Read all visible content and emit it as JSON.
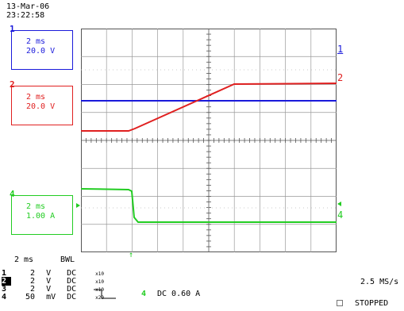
{
  "header": {
    "date": "13-Mar-06",
    "time": "23:22:58"
  },
  "channels": [
    {
      "number": "1",
      "timebase": "2 ms",
      "scale": "20.0 V",
      "color": "#1a1adb"
    },
    {
      "number": "2",
      "timebase": "2 ms",
      "scale": "20.0 V",
      "color": "#e02020"
    },
    {
      "number": "4",
      "timebase": "2 ms",
      "scale": "1.00 A",
      "color": "#22cc22"
    }
  ],
  "trace_markers": {
    "ch1": "1",
    "ch2": "2",
    "ch4": "4"
  },
  "footer": {
    "timebase": "2 ms",
    "bwl": "BWL",
    "rows": [
      {
        "ch": "1",
        "scale": "2",
        "unit": "V",
        "coupling": "DC",
        "note": "x10"
      },
      {
        "ch": "2",
        "scale": "2",
        "unit": "V",
        "coupling": "DC",
        "note": "x10"
      },
      {
        "ch": "3",
        "scale": "2",
        "unit": "V",
        "coupling": "DC",
        "note": "x10"
      },
      {
        "ch": "4",
        "scale": "50",
        "unit": "mV",
        "coupling": "DC",
        "note": "x20"
      }
    ],
    "trigger_channel": "4",
    "trigger_level": "DC 0.60 A",
    "sample_rate": "2.5 MS/s",
    "status": "STOPPED"
  }
}
